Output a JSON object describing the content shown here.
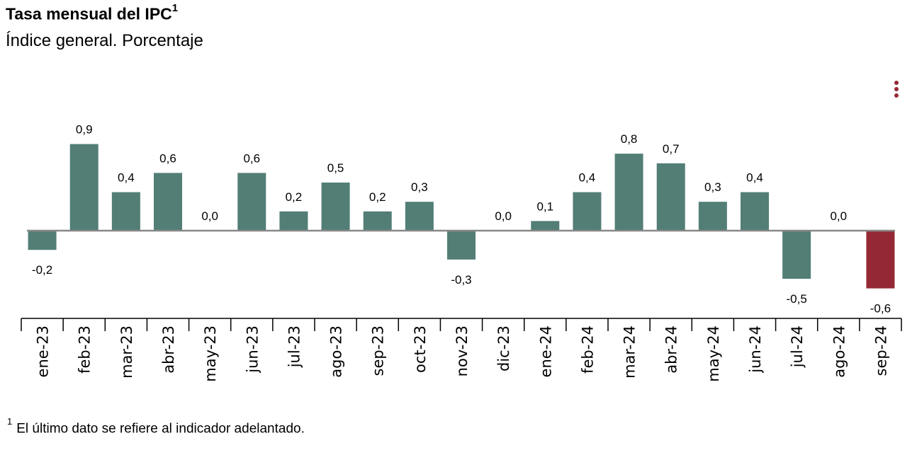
{
  "title": "Tasa mensual del IPC",
  "title_sup": "1",
  "subtitle": "Índice general. Porcentaje",
  "footnote_mark": "1",
  "footnote": "El último dato se refiere al indicador adelantado.",
  "menu_icon": "vertical-dots-menu-icon",
  "colors": {
    "bar": "#527e76",
    "highlight": "#952835",
    "baseline": "#888888",
    "axis": "#000000"
  },
  "chart_data": {
    "type": "bar",
    "categories": [
      "ene-23",
      "feb-23",
      "mar-23",
      "abr-23",
      "may-23",
      "jun-23",
      "jul-23",
      "ago-23",
      "sep-23",
      "oct-23",
      "nov-23",
      "dic-23",
      "ene-24",
      "feb-24",
      "mar-24",
      "abr-24",
      "may-24",
      "jun-24",
      "jul-24",
      "ago-24",
      "sep-24"
    ],
    "values": [
      -0.2,
      0.9,
      0.4,
      0.6,
      0.0,
      0.6,
      0.2,
      0.5,
      0.2,
      0.3,
      -0.3,
      0.0,
      0.1,
      0.4,
      0.8,
      0.7,
      0.3,
      0.4,
      -0.5,
      0.0,
      -0.6
    ],
    "labels": [
      "-0,2",
      "0,9",
      "0,4",
      "0,6",
      "0,0",
      "0,6",
      "0,2",
      "0,5",
      "0,2",
      "0,3",
      "-0,3",
      "0,0",
      "0,1",
      "0,4",
      "0,8",
      "0,7",
      "0,3",
      "0,4",
      "-0,5",
      "0,0",
      "-0,6"
    ],
    "highlight_index": 20,
    "ylim": [
      -0.6,
      0.9
    ],
    "grid": false,
    "legend": "none"
  }
}
